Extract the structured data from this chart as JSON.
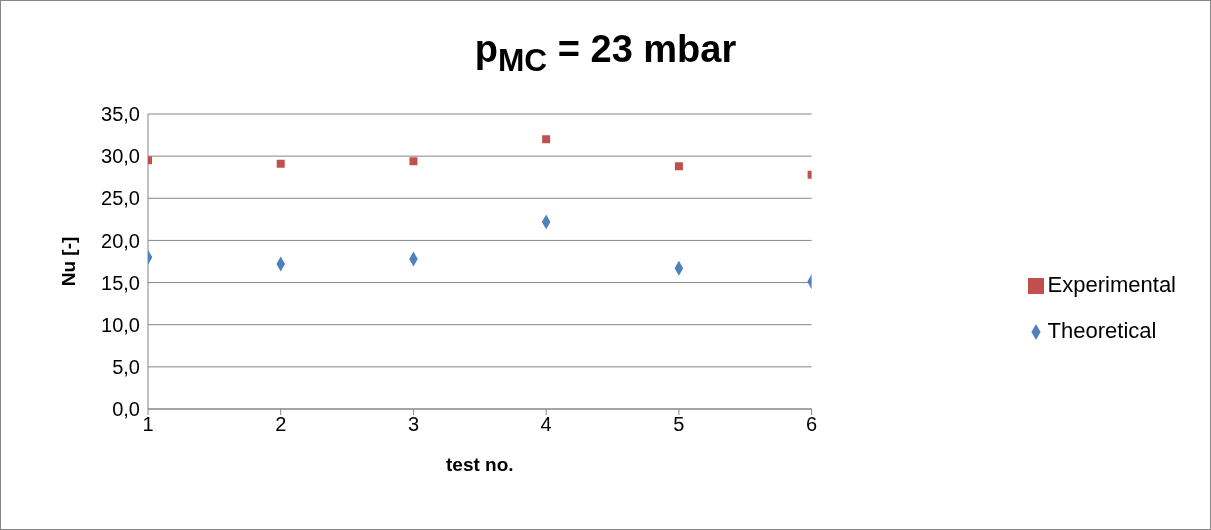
{
  "chart_data": {
    "type": "scatter",
    "title": "p$_{MC}$ = 23 mbar",
    "xlabel": "test no.",
    "ylabel": "Nu [-]",
    "x": [
      1,
      2,
      3,
      4,
      5,
      6
    ],
    "series": [
      {
        "name": "Theoretical",
        "color": "#4f81bd",
        "marker": "diamond",
        "values": [
          18.0,
          17.2,
          17.8,
          22.2,
          16.7,
          15.1
        ]
      },
      {
        "name": "Experimental",
        "color": "#c0504d",
        "marker": "square",
        "values": [
          29.5,
          29.1,
          29.4,
          32.0,
          28.8,
          27.8
        ]
      }
    ],
    "xlim": [
      1,
      6
    ],
    "xticks": [
      1,
      2,
      3,
      4,
      5,
      6
    ],
    "ylim": [
      0,
      35
    ],
    "yticks": [
      {
        "value": 0,
        "label": "0,0"
      },
      {
        "value": 5,
        "label": "5,0"
      },
      {
        "value": 10,
        "label": "10,0"
      },
      {
        "value": 15,
        "label": "15,0"
      },
      {
        "value": 20,
        "label": "20,0"
      },
      {
        "value": 25,
        "label": "25,0"
      },
      {
        "value": 30,
        "label": "30,0"
      },
      {
        "value": 35,
        "label": "35,0"
      }
    ],
    "grid": "y",
    "legend": "right"
  }
}
